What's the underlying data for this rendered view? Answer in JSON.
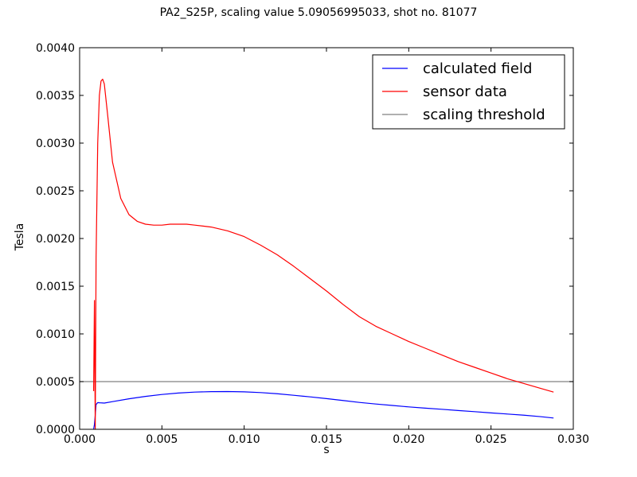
{
  "chart_data": {
    "type": "line",
    "title": "PA2_S25P, scaling value 5.09056995033, shot no. 81077",
    "xlabel": "s",
    "ylabel": "Tesla",
    "xlim": [
      0.0,
      0.03
    ],
    "ylim": [
      0.0,
      0.004
    ],
    "xticks": [
      "0.000",
      "0.005",
      "0.010",
      "0.015",
      "0.020",
      "0.025",
      "0.030"
    ],
    "yticks": [
      "0.0000",
      "0.0005",
      "0.0010",
      "0.0015",
      "0.0020",
      "0.0025",
      "0.0030",
      "0.0035",
      "0.0040"
    ],
    "grid": false,
    "legend_position": "top-right",
    "series": [
      {
        "name": "calculated field",
        "color": "#0000ff",
        "x": [
          0.00085,
          0.0009,
          0.00095,
          0.001,
          0.0011,
          0.0012,
          0.0015,
          0.002,
          0.003,
          0.004,
          0.005,
          0.006,
          0.007,
          0.008,
          0.009,
          0.01,
          0.011,
          0.012,
          0.013,
          0.014,
          0.015,
          0.016,
          0.017,
          0.018,
          0.019,
          0.02,
          0.021,
          0.022,
          0.023,
          0.024,
          0.025,
          0.026,
          0.027,
          0.028,
          0.0288
        ],
        "y": [
          0.0,
          5e-05,
          0.00015,
          0.00026,
          0.00028,
          0.000278,
          0.000275,
          0.00029,
          0.00032,
          0.000345,
          0.000365,
          0.00038,
          0.00039,
          0.000395,
          0.000396,
          0.000393,
          0.000385,
          0.000373,
          0.000357,
          0.00034,
          0.000322,
          0.000302,
          0.000282,
          0.000265,
          0.00025,
          0.000235,
          0.000222,
          0.00021,
          0.000197,
          0.000185,
          0.000172,
          0.00016,
          0.000148,
          0.000133,
          0.000118
        ]
      },
      {
        "name": "sensor data",
        "color": "#ff0000",
        "x": [
          0.00085,
          0.0009,
          0.00095,
          0.001,
          0.0011,
          0.0012,
          0.0013,
          0.0014,
          0.0015,
          0.0017,
          0.002,
          0.0025,
          0.003,
          0.0035,
          0.004,
          0.0045,
          0.005,
          0.0055,
          0.006,
          0.0065,
          0.007,
          0.0075,
          0.008,
          0.009,
          0.01,
          0.011,
          0.012,
          0.013,
          0.014,
          0.015,
          0.016,
          0.017,
          0.018,
          0.019,
          0.02,
          0.021,
          0.022,
          0.023,
          0.024,
          0.025,
          0.026,
          0.027,
          0.028,
          0.0288
        ],
        "y": [
          0.0004,
          0.00135,
          0.0,
          0.0018,
          0.003,
          0.0035,
          0.00365,
          0.00367,
          0.00362,
          0.0033,
          0.0028,
          0.00242,
          0.00225,
          0.00218,
          0.00215,
          0.00214,
          0.00214,
          0.00215,
          0.00215,
          0.00215,
          0.00214,
          0.00213,
          0.00212,
          0.00208,
          0.00202,
          0.00193,
          0.00183,
          0.00171,
          0.00158,
          0.00145,
          0.00131,
          0.00118,
          0.00108,
          0.001,
          0.00092,
          0.00085,
          0.00078,
          0.00071,
          0.00065,
          0.00059,
          0.00053,
          0.00048,
          0.00043,
          0.00039
        ]
      },
      {
        "name": "scaling threshold",
        "color": "#808080",
        "x": [
          0.0,
          0.03
        ],
        "y": [
          0.0005,
          0.0005
        ]
      }
    ]
  }
}
